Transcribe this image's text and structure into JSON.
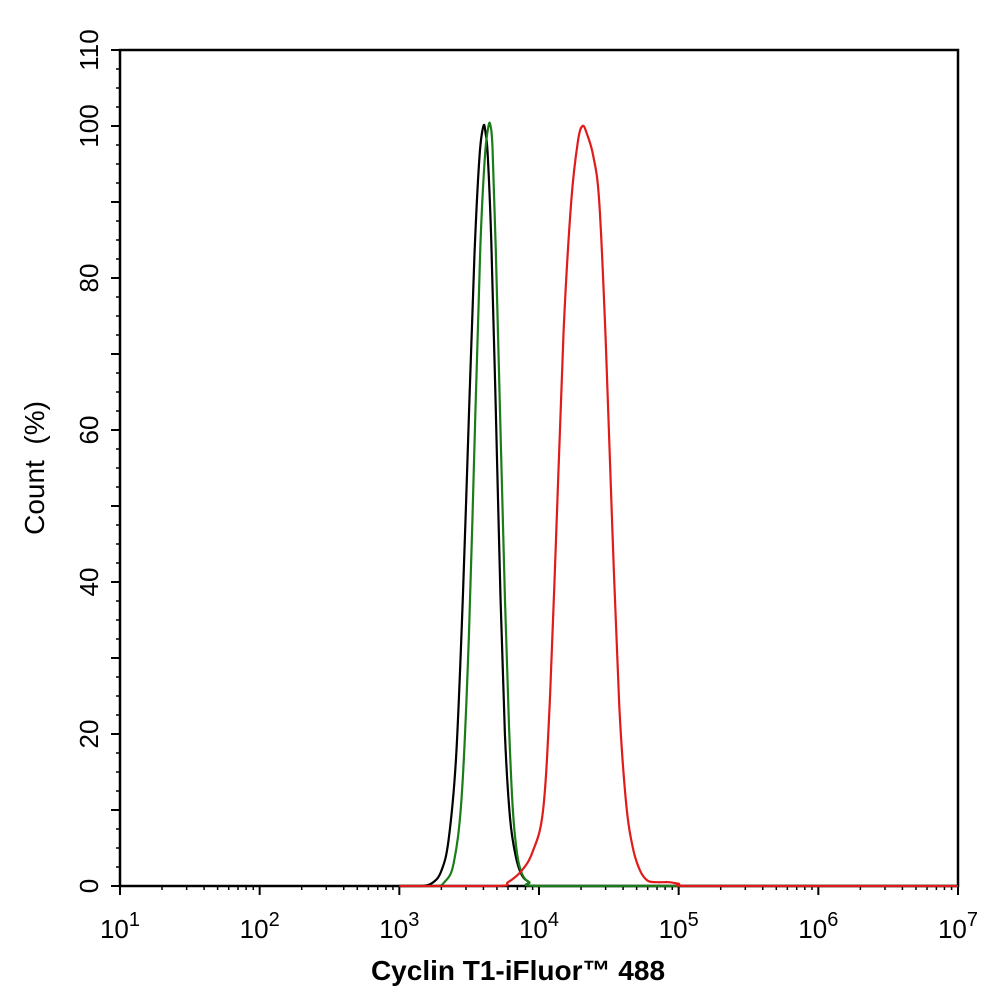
{
  "chart_data": {
    "type": "line",
    "xlabel": "Cyclin T1-iFluor™ 488",
    "ylabel": "Count  (%)",
    "x_scale": "log",
    "xlim": [
      10,
      10000000
    ],
    "ylim": [
      0,
      110
    ],
    "x_ticks": [
      {
        "base": "10",
        "exp": "1"
      },
      {
        "base": "10",
        "exp": "2"
      },
      {
        "base": "10",
        "exp": "3"
      },
      {
        "base": "10",
        "exp": "4"
      },
      {
        "base": "10",
        "exp": "5"
      },
      {
        "base": "10",
        "exp": "6"
      },
      {
        "base": "10",
        "exp": "7"
      }
    ],
    "y_ticks": [
      "0",
      "20",
      "40",
      "60",
      "80",
      "100",
      "110"
    ],
    "grid": false,
    "legend": "none",
    "series": [
      {
        "color": "#000000",
        "x": [
          1000,
          1450,
          1750,
          2000,
          2250,
          2550,
          2850,
          3150,
          3450,
          3750,
          4000,
          4150,
          4300,
          4550,
          4900,
          5300,
          5700,
          6200,
          6800,
          7500,
          8500,
          10000,
          100000,
          10000000
        ],
        "y": [
          0,
          0,
          0.5,
          2,
          6,
          17,
          38,
          62,
          83,
          96,
          100,
          99,
          96,
          85,
          63,
          38,
          20,
          9,
          4,
          1.5,
          0.5,
          0,
          0,
          0
        ]
      },
      {
        "color": "#1a7d1a",
        "x": [
          1000,
          1800,
          2100,
          2450,
          2800,
          3150,
          3500,
          3800,
          4100,
          4350,
          4500,
          4650,
          4900,
          5300,
          5700,
          6100,
          6500,
          7000,
          7600,
          8500,
          10000,
          100000,
          10000000
        ],
        "y": [
          0,
          0,
          0.5,
          3,
          12,
          33,
          62,
          84,
          96,
          100,
          100,
          97,
          84,
          60,
          38,
          21,
          10,
          4,
          1.5,
          0.5,
          0,
          0,
          0
        ]
      },
      {
        "color": "#e01b1b",
        "x": [
          1000,
          5000,
          6000,
          7500,
          9000,
          10700,
          12000,
          13500,
          15000,
          17000,
          19000,
          20500,
          22000,
          24500,
          27000,
          30000,
          33500,
          37500,
          42000,
          47000,
          53000,
          60000,
          70000,
          85000,
          100000,
          120000,
          1000000,
          10000000
        ],
        "y": [
          0,
          0,
          0.5,
          2,
          4.5,
          10,
          25,
          50,
          73,
          90,
          98,
          100,
          99,
          96,
          90,
          72,
          47,
          24,
          11,
          5,
          2,
          0.7,
          0.5,
          0.5,
          0.3,
          0,
          0,
          0
        ]
      }
    ]
  }
}
